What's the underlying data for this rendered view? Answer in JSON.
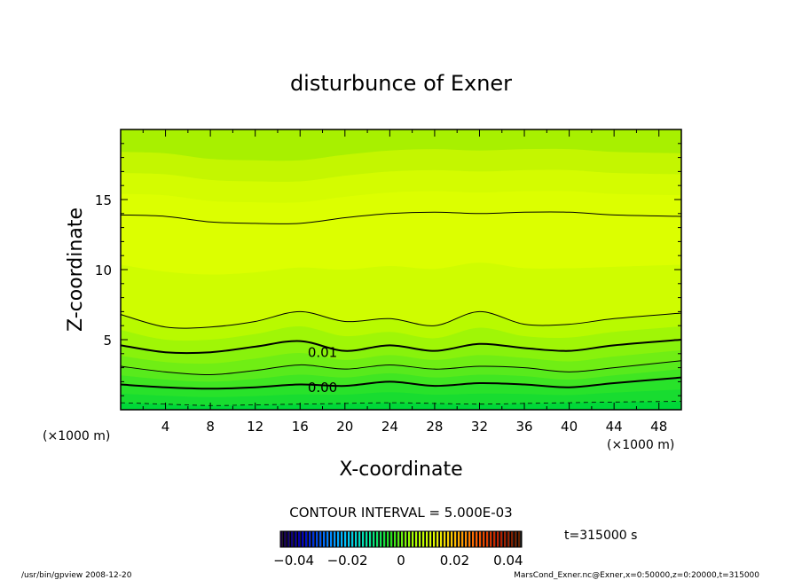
{
  "chart_data": {
    "type": "contour",
    "title": "disturbunce of Exner",
    "xlabel": "X-coordinate",
    "ylabel": "Z-coordinate",
    "x_unit": "(×1000 m)",
    "z_unit": "(×1000 m)",
    "xlim": [
      0,
      50
    ],
    "ylim": [
      0,
      20
    ],
    "x_ticks": [
      4,
      8,
      12,
      16,
      20,
      24,
      28,
      32,
      36,
      40,
      44,
      48
    ],
    "y_ticks": [
      5,
      10,
      15
    ],
    "contour_interval_text": "CONTOUR INTERVAL = 5.000E-03",
    "time_label": "t=315000 s",
    "colorbar": {
      "min": -0.045,
      "max": 0.045,
      "ticks": [
        -0.04,
        -0.02,
        0,
        0.02,
        0.04
      ],
      "tick_labels": [
        "−0.04",
        "−0.02",
        "0",
        "0.02",
        "0.04"
      ],
      "colormap": [
        "#1a0040",
        "#0000c0",
        "#0070ff",
        "#00c8ff",
        "#00e8a0",
        "#20e020",
        "#a0ff00",
        "#e0ff00",
        "#ffc000",
        "#ff6000",
        "#c02000",
        "#602000"
      ]
    },
    "contour_lines": [
      {
        "level": -0.005,
        "style": "dashed",
        "z": [
          0.5,
          0.4,
          0.3,
          0.35,
          0.4,
          0.45,
          0.5,
          0.45,
          0.4,
          0.45,
          0.5,
          0.55,
          0.6
        ]
      },
      {
        "level": 0.0,
        "label": "0.00",
        "style": "bold",
        "z": [
          1.8,
          1.6,
          1.5,
          1.6,
          1.8,
          1.7,
          2.0,
          1.7,
          1.9,
          1.8,
          1.6,
          1.9,
          2.3
        ]
      },
      {
        "level": 0.005,
        "style": "thin",
        "z": [
          3.1,
          2.7,
          2.5,
          2.8,
          3.2,
          2.9,
          3.2,
          2.9,
          3.1,
          3.0,
          2.7,
          3.0,
          3.5
        ]
      },
      {
        "level": 0.01,
        "label": "0.01",
        "style": "bold",
        "z": [
          4.6,
          4.1,
          4.1,
          4.5,
          4.9,
          4.2,
          4.6,
          4.2,
          4.7,
          4.4,
          4.2,
          4.6,
          5.0
        ]
      },
      {
        "level": 0.015,
        "style": "thin",
        "z": [
          6.8,
          5.9,
          5.9,
          6.3,
          7.0,
          6.3,
          6.5,
          6.0,
          7.0,
          6.1,
          6.1,
          6.5,
          6.9
        ]
      },
      {
        "level": 0.02,
        "style": "thin",
        "z": [
          13.9,
          13.8,
          13.4,
          13.3,
          13.3,
          13.7,
          14.0,
          14.1,
          14.0,
          14.1,
          14.1,
          13.9,
          13.8
        ]
      }
    ],
    "contour_x": [
      0,
      4,
      8,
      12,
      16,
      20,
      24,
      28,
      32,
      36,
      40,
      44,
      50
    ],
    "fill_colors": [
      "#00d840",
      "#20e030",
      "#40ea20",
      "#70f010",
      "#a0f500",
      "#c8fa00",
      "#dcff00",
      "#c8fa00",
      "#b4f400",
      "#a8f000"
    ]
  },
  "footer": {
    "left": "/usr/bin/gpview   2008-12-20",
    "right": "MarsCond_Exner.nc@Exner,x=0:50000,z=0:20000,t=315000"
  }
}
